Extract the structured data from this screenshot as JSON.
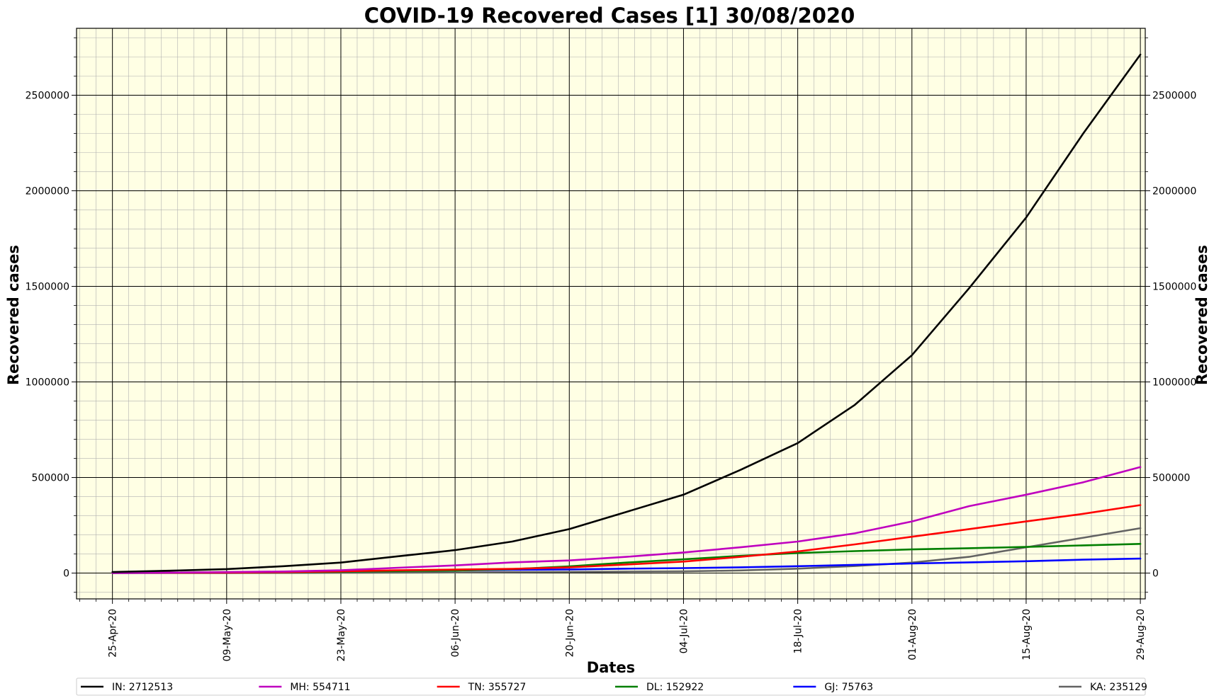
{
  "chart_data": {
    "type": "line",
    "title": "COVID-19 Recovered Cases [1] 30/08/2020",
    "xlabel": "Dates",
    "ylabel": "Recovered cases",
    "ylabel_right": "Recovered cases",
    "x_start": "25-Apr-20",
    "x_end": "29-Aug-20",
    "xlim_days": [
      -4.4,
      126.6
    ],
    "ylim": [
      -135000,
      2850000
    ],
    "x_ticks": [
      {
        "day": 0,
        "label": "25-Apr-20"
      },
      {
        "day": 14,
        "label": "09-May-20"
      },
      {
        "day": 28,
        "label": "23-May-20"
      },
      {
        "day": 42,
        "label": "06-Jun-20"
      },
      {
        "day": 56,
        "label": "20-Jun-20"
      },
      {
        "day": 70,
        "label": "04-Jul-20"
      },
      {
        "day": 84,
        "label": "18-Jul-20"
      },
      {
        "day": 98,
        "label": "01-Aug-20"
      },
      {
        "day": 112,
        "label": "15-Aug-20"
      },
      {
        "day": 126,
        "label": "29-Aug-20"
      }
    ],
    "y_ticks": [
      {
        "value": 0,
        "label": "0"
      },
      {
        "value": 500000,
        "label": "500000"
      },
      {
        "value": 1000000,
        "label": "1000000"
      },
      {
        "value": 1500000,
        "label": "1500000"
      },
      {
        "value": 2000000,
        "label": "2000000"
      },
      {
        "value": 2500000,
        "label": "2500000"
      }
    ],
    "grid": true,
    "legend_position": "bottom",
    "colors": {
      "plot_background": "#ffffe4",
      "major_grid": "#000000",
      "minor_grid": "#b0b0b0"
    },
    "series": [
      {
        "name": "IN: 2712513",
        "color": "#000000",
        "days": [
          0,
          7,
          14,
          21,
          28,
          35,
          42,
          49,
          56,
          63,
          70,
          77,
          84,
          91,
          98,
          105,
          112,
          119,
          126
        ],
        "values": [
          5900,
          12500,
          21000,
          36000,
          55000,
          88000,
          120000,
          165000,
          230000,
          320000,
          410000,
          540000,
          680000,
          880000,
          1140000,
          1490000,
          1860000,
          2300000,
          2712513
        ]
      },
      {
        "name": "MH: 554711",
        "color": "#bf00bf",
        "days": [
          0,
          7,
          14,
          21,
          28,
          35,
          42,
          49,
          56,
          63,
          70,
          77,
          84,
          91,
          98,
          105,
          112,
          119,
          126
        ],
        "values": [
          1200,
          2500,
          5500,
          8500,
          14500,
          28000,
          40000,
          56000,
          66000,
          85000,
          108000,
          135000,
          165000,
          208000,
          270000,
          350000,
          410000,
          475000,
          554711
        ]
      },
      {
        "name": "TN: 355727",
        "color": "#ff0000",
        "days": [
          0,
          7,
          14,
          21,
          28,
          35,
          42,
          49,
          56,
          63,
          70,
          77,
          84,
          91,
          98,
          105,
          112,
          119,
          126
        ],
        "values": [
          1000,
          1500,
          2500,
          5000,
          9000,
          14500,
          18500,
          22000,
          30000,
          45000,
          60000,
          85000,
          113000,
          150000,
          190000,
          230000,
          270000,
          310000,
          355727
        ]
      },
      {
        "name": "DL: 152922",
        "color": "#007f00",
        "days": [
          0,
          7,
          14,
          21,
          28,
          35,
          42,
          49,
          56,
          63,
          70,
          77,
          84,
          91,
          98,
          105,
          112,
          119,
          126
        ],
        "values": [
          850,
          1500,
          3000,
          5000,
          7000,
          10500,
          13500,
          21000,
          35000,
          55000,
          72000,
          90000,
          105000,
          115000,
          124000,
          130000,
          137000,
          145000,
          152922
        ]
      },
      {
        "name": "GJ: 75763",
        "color": "#0000ff",
        "days": [
          0,
          7,
          14,
          21,
          28,
          35,
          42,
          49,
          56,
          63,
          70,
          77,
          84,
          91,
          98,
          105,
          112,
          119,
          126
        ],
        "values": [
          500,
          1200,
          2500,
          5500,
          8000,
          12000,
          14000,
          17000,
          19000,
          23000,
          26000,
          30000,
          36000,
          43000,
          50000,
          56000,
          62000,
          70000,
          75763
        ]
      },
      {
        "name": "KA: 235129",
        "color": "#636363",
        "days": [
          0,
          7,
          14,
          21,
          28,
          35,
          42,
          49,
          56,
          63,
          70,
          77,
          84,
          91,
          98,
          105,
          112,
          119,
          126
        ],
        "values": [
          200,
          400,
          600,
          900,
          1500,
          2000,
          3000,
          4500,
          6000,
          8000,
          9000,
          14000,
          23000,
          37000,
          55000,
          85000,
          135000,
          185000,
          235129
        ]
      }
    ]
  }
}
